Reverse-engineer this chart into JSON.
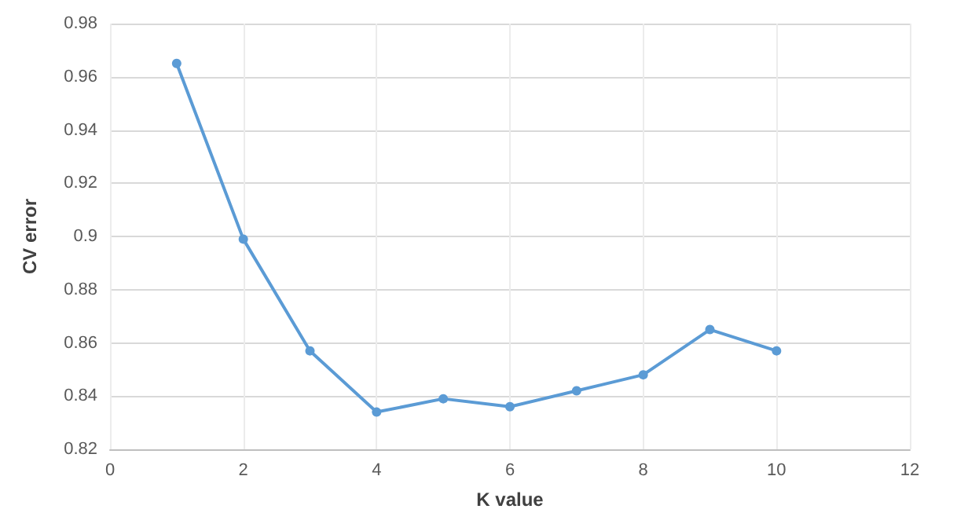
{
  "chart_data": {
    "type": "line",
    "xlabel": "K value",
    "ylabel": "CV error",
    "x": [
      1,
      2,
      3,
      4,
      5,
      6,
      7,
      8,
      9,
      10
    ],
    "series": [
      {
        "color": "#5b9bd5",
        "values": [
          0.965,
          0.899,
          0.857,
          0.834,
          0.839,
          0.836,
          0.842,
          0.848,
          0.865,
          0.857
        ]
      }
    ],
    "xlim": [
      0,
      12
    ],
    "xticks": [
      0,
      2,
      4,
      6,
      8,
      10,
      12
    ],
    "ylim": [
      0.82,
      0.98
    ],
    "yticks": [
      0.82,
      0.84,
      0.86,
      0.88,
      0.9,
      0.92,
      0.94,
      0.96,
      0.98
    ],
    "grid": true,
    "marker": "circle",
    "line_style": "solid"
  }
}
